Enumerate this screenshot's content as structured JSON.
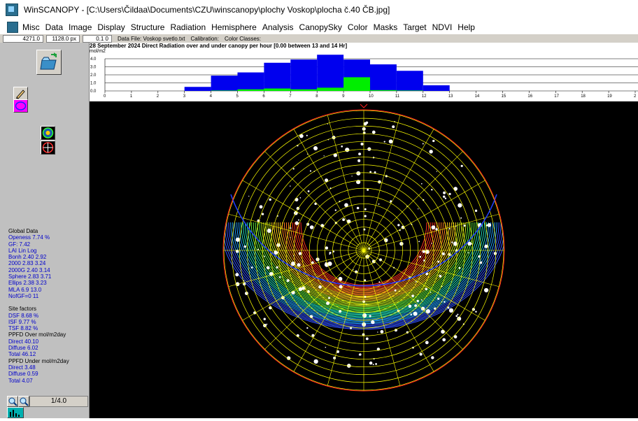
{
  "window": {
    "title": "WinSCANOPY - [C:\\Users\\Čildaa\\Documents\\CZU\\winscanopy\\plochy Voskop\\plocha č.40 ČB.jpg]"
  },
  "menu": [
    "Misc",
    "Data",
    "Image",
    "Display",
    "Structure",
    "Radiation",
    "Hemisphere",
    "Analysis",
    "CanopySky",
    "Color",
    "Masks",
    "Target",
    "NDVI",
    "Help"
  ],
  "infobar": {
    "v1": "4271.0",
    "v2": "1128.0 px",
    "v3": "0.1 0",
    "data_file": "Data File: Voskop svetlo.txt",
    "calibration": "Calibration:",
    "color_classes": "Color Classes:"
  },
  "chart_data": {
    "type": "bar",
    "title": "28 September 2024   Direct Radiation over and under canopy per hour     [0.00 between 13 and 14 Hr]",
    "ylabel": "mol/m2",
    "ylim": [
      0,
      4.0
    ],
    "yticks": [
      "4.0",
      "3.0",
      "2.0",
      "1.0",
      "0.0"
    ],
    "xticks": [
      "0",
      "1",
      "2",
      "3",
      "4",
      "5",
      "6",
      "7",
      "8",
      "9",
      "10",
      "11",
      "12",
      "13",
      "14",
      "15",
      "16",
      "17",
      "18",
      "19",
      "2"
    ],
    "series": [
      {
        "name": "over",
        "color": "#0000ee",
        "values": [
          0,
          0,
          0,
          0.5,
          1.9,
          2.3,
          3.5,
          3.9,
          4.5,
          3.9,
          3.3,
          2.5,
          0.7,
          0,
          0,
          0,
          0,
          0,
          0,
          0
        ]
      },
      {
        "name": "under",
        "color": "#00ee00",
        "values": [
          0,
          0,
          0,
          0,
          0.05,
          0.2,
          0.3,
          0.2,
          0.4,
          1.7,
          0.1,
          0.05,
          0,
          0,
          0,
          0,
          0,
          0,
          0,
          0
        ]
      }
    ]
  },
  "global": {
    "header": "Global Data",
    "openess": "Openess  7.74 %",
    "gf": "GF:  7.42",
    "lai": "LAI   Lin Log",
    "bonh": "Bonh  2.40 2.92",
    "r2000": "2000  2.83 3.24",
    "r2000g": "2000G  2.40 3.14",
    "sphere": "Sphere  2.83 3.71",
    "ellips": "Ellips  2.38 3.23",
    "mla": "MLA     6.9 13.0",
    "nofgf": "NofGF=0   11"
  },
  "site": {
    "header": "Site factors",
    "dsf": "DSF   8.68 %",
    "isf": "ISF    9.77 %",
    "tsf": "TSF   8.82 %"
  },
  "ppfd_over": {
    "header": "PPFD Over mol/m2day",
    "direct": "Direct   40.10",
    "diffuse": "Diffuse  6.02",
    "total": "Total     46.12"
  },
  "ppfd_under": {
    "header": "PPFD Under mol/m2day",
    "direct": "Direct   3.48",
    "diffuse": "Diffuse  0.59",
    "total": "Total     4.07"
  },
  "zoom": {
    "ratio": "1/4.0"
  },
  "colors": {
    "sky_ring": "#ffff00",
    "horizon": "#ff2020",
    "sun_track": "#2040ff"
  },
  "icons": [
    "open-file-icon",
    "pencil-icon",
    "ellipse-icon",
    "color-target-icon",
    "red-target-icon",
    "zoom-in-icon",
    "zoom-out-icon",
    "histogram-icon"
  ]
}
